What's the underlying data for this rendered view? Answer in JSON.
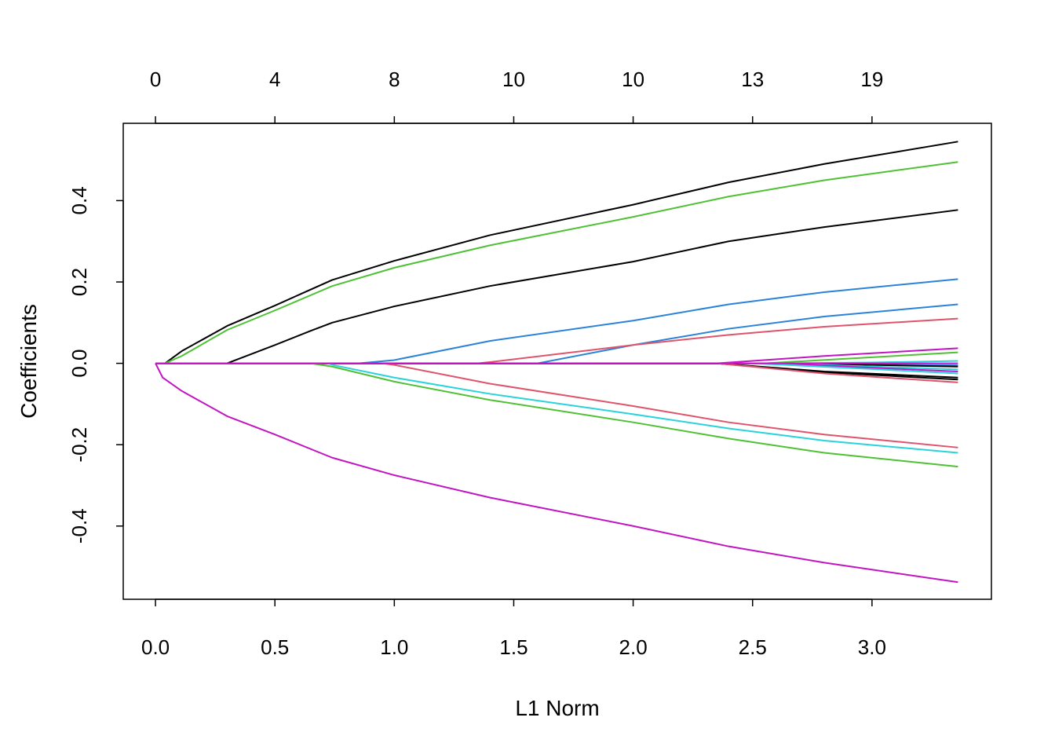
{
  "chart_data": {
    "type": "line",
    "title": "",
    "xlabel": "L1 Norm",
    "ylabel": "Coefficients",
    "xlim": [
      -0.135,
      3.5
    ],
    "ylim": [
      -0.58,
      0.59
    ],
    "x_ticks": [
      0.0,
      0.5,
      1.0,
      1.5,
      2.0,
      2.5,
      3.0
    ],
    "x_tick_labels": [
      "0.0",
      "0.5",
      "1.0",
      "1.5",
      "2.0",
      "2.5",
      "3.0"
    ],
    "y_ticks": [
      -0.4,
      -0.2,
      0.0,
      0.2,
      0.4
    ],
    "y_tick_labels": [
      "-0.4",
      "-0.2",
      "0.0",
      "0.2",
      "0.4"
    ],
    "top_ticks": [
      0.0,
      0.5,
      1.0,
      1.5,
      2.0,
      2.5,
      3.0
    ],
    "top_tick_labels": [
      "0",
      "4",
      "8",
      "10",
      "10",
      "13",
      "19"
    ],
    "grid": false,
    "legend": "none",
    "series": [
      {
        "color": "#000000",
        "points": [
          [
            0.0,
            0.0
          ],
          [
            0.04,
            0.0
          ],
          [
            0.11,
            0.03
          ],
          [
            0.3,
            0.092
          ],
          [
            0.5,
            0.142
          ],
          [
            0.74,
            0.205
          ],
          [
            1.0,
            0.252
          ],
          [
            1.4,
            0.315
          ],
          [
            2.0,
            0.39
          ],
          [
            2.4,
            0.445
          ],
          [
            2.8,
            0.49
          ],
          [
            3.36,
            0.545
          ]
        ]
      },
      {
        "color": "#4EC134",
        "points": [
          [
            0.0,
            0.0
          ],
          [
            0.04,
            0.0
          ],
          [
            0.11,
            0.018
          ],
          [
            0.3,
            0.082
          ],
          [
            0.5,
            0.13
          ],
          [
            0.74,
            0.19
          ],
          [
            1.0,
            0.235
          ],
          [
            1.4,
            0.29
          ],
          [
            2.0,
            0.36
          ],
          [
            2.4,
            0.41
          ],
          [
            2.8,
            0.45
          ],
          [
            3.36,
            0.495
          ]
        ]
      },
      {
        "color": "#000000",
        "points": [
          [
            0.0,
            0.0
          ],
          [
            0.3,
            0.0
          ],
          [
            0.5,
            0.045
          ],
          [
            0.65,
            0.08
          ],
          [
            0.74,
            0.1
          ],
          [
            1.0,
            0.14
          ],
          [
            1.4,
            0.19
          ],
          [
            2.0,
            0.25
          ],
          [
            2.4,
            0.3
          ],
          [
            2.8,
            0.335
          ],
          [
            3.36,
            0.377
          ]
        ]
      },
      {
        "color": "#2A83D8",
        "points": [
          [
            0.0,
            0.0
          ],
          [
            0.85,
            0.0
          ],
          [
            1.0,
            0.008
          ],
          [
            1.4,
            0.055
          ],
          [
            2.0,
            0.105
          ],
          [
            2.4,
            0.145
          ],
          [
            2.8,
            0.175
          ],
          [
            3.36,
            0.207
          ]
        ]
      },
      {
        "color": "#2A83D8",
        "points": [
          [
            0.0,
            0.0
          ],
          [
            1.6,
            0.0
          ],
          [
            2.0,
            0.045
          ],
          [
            2.4,
            0.085
          ],
          [
            2.8,
            0.115
          ],
          [
            3.36,
            0.145
          ]
        ]
      },
      {
        "color": "#DF536B",
        "points": [
          [
            0.0,
            0.0
          ],
          [
            1.35,
            0.0
          ],
          [
            1.4,
            0.003
          ],
          [
            2.0,
            0.045
          ],
          [
            2.4,
            0.07
          ],
          [
            2.8,
            0.09
          ],
          [
            3.36,
            0.11
          ]
        ]
      },
      {
        "color": "#C215C2",
        "points": [
          [
            0.0,
            0.0
          ],
          [
            2.35,
            0.0
          ],
          [
            2.8,
            0.018
          ],
          [
            3.36,
            0.037
          ]
        ]
      },
      {
        "color": "#4EC134",
        "points": [
          [
            0.0,
            0.0
          ],
          [
            2.55,
            0.0
          ],
          [
            3.0,
            0.015
          ],
          [
            3.36,
            0.027
          ]
        ]
      },
      {
        "color": "#28D3DB",
        "points": [
          [
            0.0,
            0.0
          ],
          [
            2.6,
            0.0
          ],
          [
            3.0,
            0.002
          ],
          [
            3.36,
            0.006
          ]
        ]
      },
      {
        "color": "#2A83D8",
        "points": [
          [
            0.0,
            0.0
          ],
          [
            2.6,
            0.0
          ],
          [
            3.0,
            -0.003
          ],
          [
            3.36,
            -0.005
          ]
        ]
      },
      {
        "color": "#000000",
        "points": [
          [
            0.0,
            0.0
          ],
          [
            2.6,
            0.0
          ],
          [
            3.0,
            -0.004
          ],
          [
            3.36,
            -0.008
          ]
        ]
      },
      {
        "color": "#28D3DB",
        "points": [
          [
            0.0,
            0.0
          ],
          [
            2.6,
            0.0
          ],
          [
            3.0,
            -0.008
          ],
          [
            3.36,
            -0.015
          ]
        ]
      },
      {
        "color": "#C215C2",
        "points": [
          [
            0.0,
            0.0
          ],
          [
            2.6,
            0.0
          ],
          [
            3.0,
            -0.011
          ],
          [
            3.36,
            -0.02
          ]
        ]
      },
      {
        "color": "#28D3DB",
        "points": [
          [
            0.0,
            0.0
          ],
          [
            2.5,
            0.0
          ],
          [
            3.0,
            -0.014
          ],
          [
            3.36,
            -0.025
          ]
        ]
      },
      {
        "color": "#000000",
        "points": [
          [
            0.0,
            0.0
          ],
          [
            2.35,
            0.0
          ],
          [
            2.8,
            -0.02
          ],
          [
            3.36,
            -0.035
          ]
        ]
      },
      {
        "color": "#000000",
        "points": [
          [
            0.0,
            0.0
          ],
          [
            2.35,
            0.0
          ],
          [
            2.8,
            -0.022
          ],
          [
            3.36,
            -0.04
          ]
        ]
      },
      {
        "color": "#DF536B",
        "points": [
          [
            0.0,
            0.0
          ],
          [
            2.35,
            0.0
          ],
          [
            2.8,
            -0.025
          ],
          [
            3.36,
            -0.047
          ]
        ]
      },
      {
        "color": "#DF536B",
        "points": [
          [
            0.0,
            0.0
          ],
          [
            0.95,
            0.0
          ],
          [
            1.0,
            -0.004
          ],
          [
            1.4,
            -0.05
          ],
          [
            2.0,
            -0.105
          ],
          [
            2.4,
            -0.145
          ],
          [
            2.8,
            -0.175
          ],
          [
            3.36,
            -0.207
          ]
        ]
      },
      {
        "color": "#28D3DB",
        "points": [
          [
            0.0,
            0.0
          ],
          [
            0.72,
            0.0
          ],
          [
            0.75,
            -0.005
          ],
          [
            1.0,
            -0.035
          ],
          [
            1.4,
            -0.075
          ],
          [
            2.0,
            -0.125
          ],
          [
            2.4,
            -0.16
          ],
          [
            2.8,
            -0.19
          ],
          [
            3.36,
            -0.22
          ]
        ]
      },
      {
        "color": "#4EC134",
        "points": [
          [
            0.0,
            0.0
          ],
          [
            0.65,
            0.0
          ],
          [
            0.74,
            -0.008
          ],
          [
            1.0,
            -0.045
          ],
          [
            1.4,
            -0.09
          ],
          [
            2.0,
            -0.145
          ],
          [
            2.4,
            -0.185
          ],
          [
            2.8,
            -0.22
          ],
          [
            3.36,
            -0.254
          ]
        ]
      },
      {
        "color": "#C215C2",
        "points": [
          [
            0.0,
            0.0
          ],
          [
            0.03,
            -0.035
          ],
          [
            0.11,
            -0.068
          ],
          [
            0.3,
            -0.13
          ],
          [
            0.5,
            -0.175
          ],
          [
            0.74,
            -0.232
          ],
          [
            1.0,
            -0.275
          ],
          [
            1.4,
            -0.33
          ],
          [
            2.0,
            -0.4
          ],
          [
            2.4,
            -0.45
          ],
          [
            2.8,
            -0.49
          ],
          [
            3.36,
            -0.538
          ]
        ]
      },
      {
        "color": "#C215C2",
        "points": [
          [
            0.0,
            0.0
          ],
          [
            3.36,
            0.0
          ]
        ]
      }
    ]
  }
}
